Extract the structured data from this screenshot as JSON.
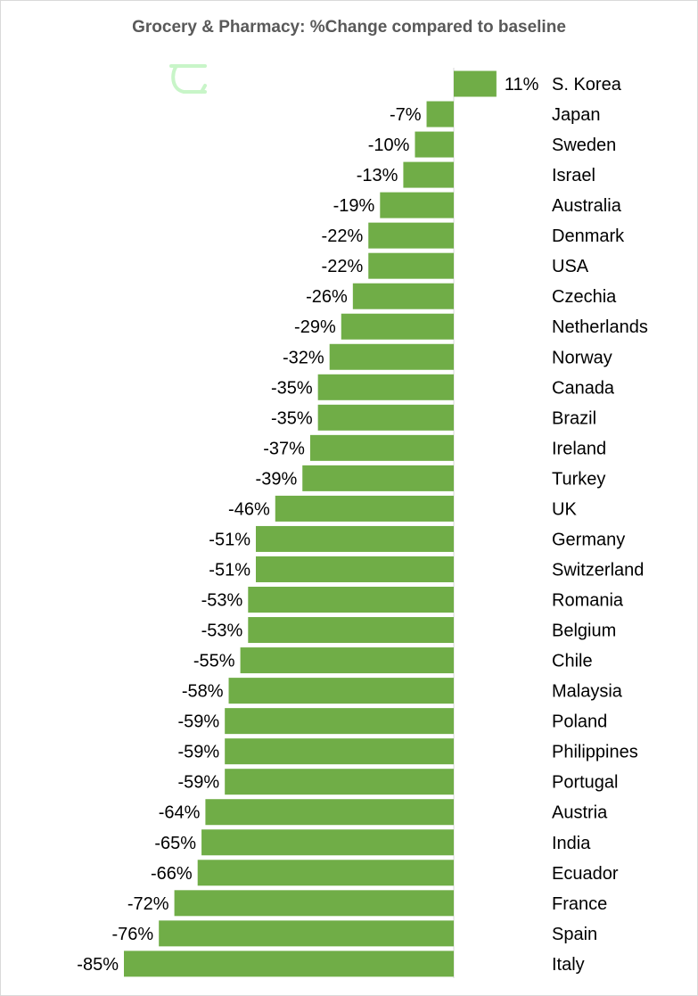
{
  "chart_data": {
    "type": "bar",
    "orientation": "horizontal",
    "title": "Grocery & Pharmacy: %Change compared to baseline",
    "xlabel": "",
    "ylabel": "",
    "value_suffix": "%",
    "bar_color": "#70ad47",
    "categories": [
      "S. Korea",
      "Japan",
      "Sweden",
      "Israel",
      "Australia",
      "Denmark",
      "USA",
      "Czechia",
      "Netherlands",
      "Norway",
      "Canada",
      "Brazil",
      "Ireland",
      "Turkey",
      "UK",
      "Germany",
      "Switzerland",
      "Romania",
      "Belgium",
      "Chile",
      "Malaysia",
      "Poland",
      "Philippines",
      "Portugal",
      "Austria",
      "India",
      "Ecuador",
      "France",
      "Spain",
      "Italy"
    ],
    "values": [
      11,
      -7,
      -10,
      -13,
      -19,
      -22,
      -22,
      -26,
      -29,
      -32,
      -35,
      -35,
      -37,
      -39,
      -46,
      -51,
      -51,
      -53,
      -53,
      -55,
      -58,
      -59,
      -59,
      -59,
      -64,
      -65,
      -66,
      -72,
      -76,
      -85
    ],
    "data_labels": [
      "11%",
      "-7%",
      "-10%",
      "-13%",
      "-19%",
      "-22%",
      "-22%",
      "-26%",
      "-29%",
      "-32%",
      "-35%",
      "-35%",
      "-37%",
      "-39%",
      "-46%",
      "-51%",
      "-51%",
      "-53%",
      "-53%",
      "-55%",
      "-58%",
      "-59%",
      "-59%",
      "-59%",
      "-64%",
      "-65%",
      "-66%",
      "-72%",
      "-76%",
      "-85%"
    ],
    "grid": false,
    "legend": "none"
  }
}
